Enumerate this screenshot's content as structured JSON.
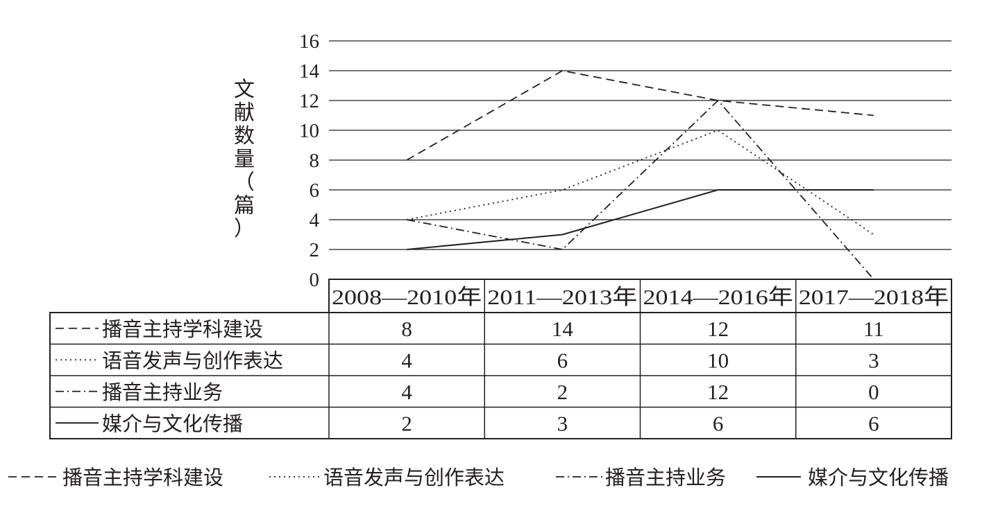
{
  "chart_data": {
    "type": "line",
    "categories": [
      "2008—2010年",
      "2011—2013年",
      "2014—2016年",
      "2017—2018年"
    ],
    "ylabel": "文献数量（篇）",
    "ylabel_chars": [
      "文",
      "献",
      "数",
      "量",
      "（",
      "篇",
      "）"
    ],
    "ylim": [
      0,
      16
    ],
    "yticks": [
      "0",
      "2",
      "4",
      "6",
      "8",
      "10",
      "12",
      "14",
      "16"
    ],
    "grid": true,
    "legend_position": "bottom",
    "data_table": true,
    "series": [
      {
        "name": "播音主持学科建设",
        "values": [
          8,
          14,
          12,
          11
        ],
        "style": "dashed"
      },
      {
        "name": "语音发声与创作表达",
        "values": [
          4,
          6,
          10,
          3
        ],
        "style": "dotted"
      },
      {
        "name": "播音主持业务",
        "values": [
          4,
          2,
          12,
          0
        ],
        "style": "dash-dot"
      },
      {
        "name": "媒介与文化传播",
        "values": [
          2,
          3,
          6,
          6
        ],
        "style": "solid"
      }
    ],
    "table_cells": [
      [
        "8",
        "14",
        "12",
        "11"
      ],
      [
        "4",
        "6",
        "10",
        "3"
      ],
      [
        "4",
        "2",
        "12",
        "0"
      ],
      [
        "2",
        "3",
        "6",
        "6"
      ]
    ],
    "line_color": "#231f20"
  }
}
